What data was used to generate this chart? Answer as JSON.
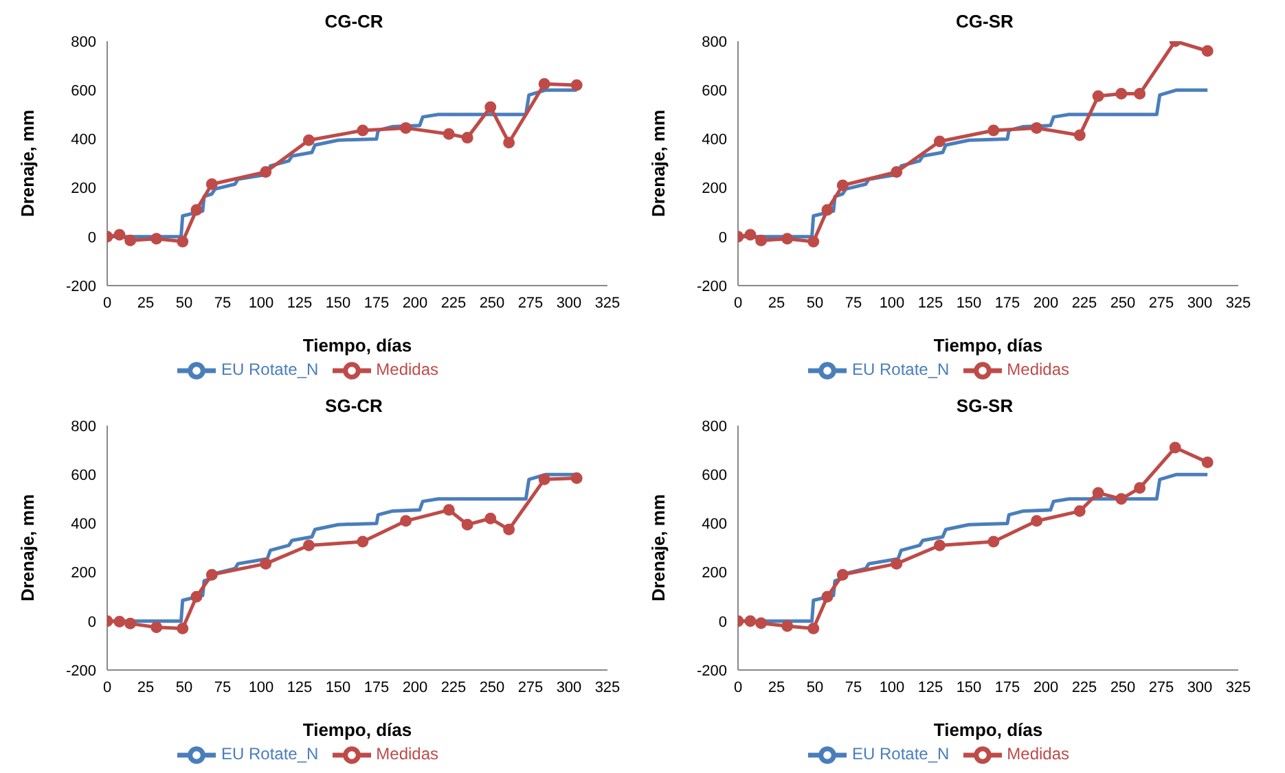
{
  "chart_data": [
    {
      "type": "line",
      "title": "CG-CR",
      "xlabel": "Tiempo, días",
      "ylabel": "Drenaje, mm",
      "xlim": [
        0,
        325
      ],
      "xticks": [
        0,
        25,
        50,
        75,
        100,
        125,
        150,
        175,
        200,
        225,
        250,
        275,
        300,
        325
      ],
      "ylim": [
        -200,
        800
      ],
      "yticks": [
        -200,
        0,
        200,
        400,
        600,
        800
      ],
      "grid": false,
      "legend": "bottom",
      "series": [
        {
          "name": "EU Rotate_N",
          "color": "#4a7ebb",
          "marker": "none",
          "x": [
            0,
            48,
            49,
            62,
            63,
            68,
            70,
            83,
            85,
            104,
            106,
            118,
            120,
            133,
            135,
            150,
            175,
            176,
            185,
            203,
            205,
            215,
            272,
            274,
            285,
            305
          ],
          "values": [
            0,
            0,
            85,
            105,
            165,
            175,
            195,
            215,
            235,
            255,
            290,
            310,
            330,
            345,
            375,
            395,
            400,
            435,
            450,
            455,
            490,
            500,
            500,
            580,
            600,
            600
          ]
        },
        {
          "name": "Medidas",
          "color": "#be4b48",
          "marker": "circle",
          "x": [
            0,
            8,
            15,
            32,
            49,
            58,
            68,
            103,
            131,
            166,
            194,
            222,
            234,
            249,
            261,
            284,
            305
          ],
          "values": [
            0,
            8,
            -15,
            -8,
            -20,
            110,
            215,
            265,
            395,
            435,
            445,
            420,
            405,
            530,
            385,
            625,
            620
          ]
        }
      ]
    },
    {
      "type": "line",
      "title": "CG-SR",
      "xlabel": "Tiempo, días",
      "ylabel": "Drenaje, mm",
      "xlim": [
        0,
        325
      ],
      "xticks": [
        0,
        25,
        50,
        75,
        100,
        125,
        150,
        175,
        200,
        225,
        250,
        275,
        300,
        325
      ],
      "ylim": [
        -200,
        800
      ],
      "yticks": [
        -200,
        0,
        200,
        400,
        600,
        800
      ],
      "grid": false,
      "legend": "bottom",
      "series": [
        {
          "name": "EU Rotate_N",
          "color": "#4a7ebb",
          "marker": "none",
          "x": [
            0,
            48,
            49,
            62,
            63,
            68,
            70,
            83,
            85,
            104,
            106,
            118,
            120,
            133,
            135,
            150,
            175,
            176,
            185,
            203,
            205,
            215,
            272,
            274,
            285,
            305
          ],
          "values": [
            0,
            0,
            85,
            105,
            165,
            175,
            195,
            215,
            235,
            255,
            290,
            310,
            330,
            345,
            375,
            395,
            400,
            435,
            450,
            455,
            490,
            500,
            500,
            580,
            600,
            600
          ]
        },
        {
          "name": "Medidas",
          "color": "#be4b48",
          "marker": "circle",
          "x": [
            0,
            8,
            15,
            32,
            49,
            58,
            68,
            103,
            131,
            166,
            194,
            222,
            234,
            249,
            261,
            284,
            305
          ],
          "values": [
            0,
            8,
            -15,
            -8,
            -20,
            110,
            210,
            265,
            390,
            435,
            445,
            415,
            575,
            585,
            585,
            800,
            760
          ]
        }
      ]
    },
    {
      "type": "line",
      "title": "SG-CR",
      "xlabel": "Tiempo, días",
      "ylabel": "Drenaje, mm",
      "xlim": [
        0,
        325
      ],
      "xticks": [
        0,
        25,
        50,
        75,
        100,
        125,
        150,
        175,
        200,
        225,
        250,
        275,
        300,
        325
      ],
      "ylim": [
        -200,
        800
      ],
      "yticks": [
        -200,
        0,
        200,
        400,
        600,
        800
      ],
      "grid": false,
      "legend": "bottom",
      "series": [
        {
          "name": "EU Rotate_N",
          "color": "#4a7ebb",
          "marker": "none",
          "x": [
            0,
            48,
            49,
            62,
            63,
            68,
            70,
            83,
            85,
            104,
            106,
            118,
            120,
            133,
            135,
            150,
            175,
            176,
            185,
            203,
            205,
            215,
            272,
            274,
            285,
            305
          ],
          "values": [
            0,
            0,
            85,
            105,
            165,
            175,
            195,
            215,
            235,
            255,
            290,
            310,
            330,
            345,
            375,
            395,
            400,
            435,
            450,
            455,
            490,
            500,
            500,
            580,
            600,
            600
          ]
        },
        {
          "name": "Medidas",
          "color": "#be4b48",
          "marker": "circle",
          "x": [
            0,
            8,
            15,
            32,
            49,
            58,
            68,
            103,
            131,
            166,
            194,
            222,
            234,
            249,
            261,
            284,
            305
          ],
          "values": [
            0,
            -2,
            -10,
            -25,
            -30,
            100,
            190,
            235,
            310,
            325,
            410,
            455,
            395,
            420,
            375,
            580,
            585
          ]
        }
      ]
    },
    {
      "type": "line",
      "title": "SG-SR",
      "xlabel": "Tiempo, días",
      "ylabel": "Drenaje, mm",
      "xlim": [
        0,
        325
      ],
      "xticks": [
        0,
        25,
        50,
        75,
        100,
        125,
        150,
        175,
        200,
        225,
        250,
        275,
        300,
        325
      ],
      "ylim": [
        -200,
        800
      ],
      "yticks": [
        -200,
        0,
        200,
        400,
        600,
        800
      ],
      "grid": false,
      "legend": "bottom",
      "series": [
        {
          "name": "EU Rotate_N",
          "color": "#4a7ebb",
          "marker": "none",
          "x": [
            0,
            48,
            49,
            62,
            63,
            68,
            70,
            83,
            85,
            104,
            106,
            118,
            120,
            133,
            135,
            150,
            175,
            176,
            185,
            203,
            205,
            215,
            272,
            274,
            285,
            305
          ],
          "values": [
            0,
            0,
            85,
            105,
            165,
            175,
            195,
            215,
            235,
            255,
            290,
            310,
            330,
            345,
            375,
            395,
            400,
            435,
            450,
            455,
            490,
            500,
            500,
            580,
            600,
            600
          ]
        },
        {
          "name": "Medidas",
          "color": "#be4b48",
          "marker": "circle",
          "x": [
            0,
            8,
            15,
            32,
            49,
            58,
            68,
            103,
            131,
            166,
            194,
            222,
            234,
            249,
            261,
            284,
            305
          ],
          "values": [
            0,
            0,
            -8,
            -20,
            -30,
            100,
            190,
            235,
            310,
            325,
            410,
            450,
            525,
            500,
            545,
            710,
            650
          ]
        }
      ]
    }
  ]
}
